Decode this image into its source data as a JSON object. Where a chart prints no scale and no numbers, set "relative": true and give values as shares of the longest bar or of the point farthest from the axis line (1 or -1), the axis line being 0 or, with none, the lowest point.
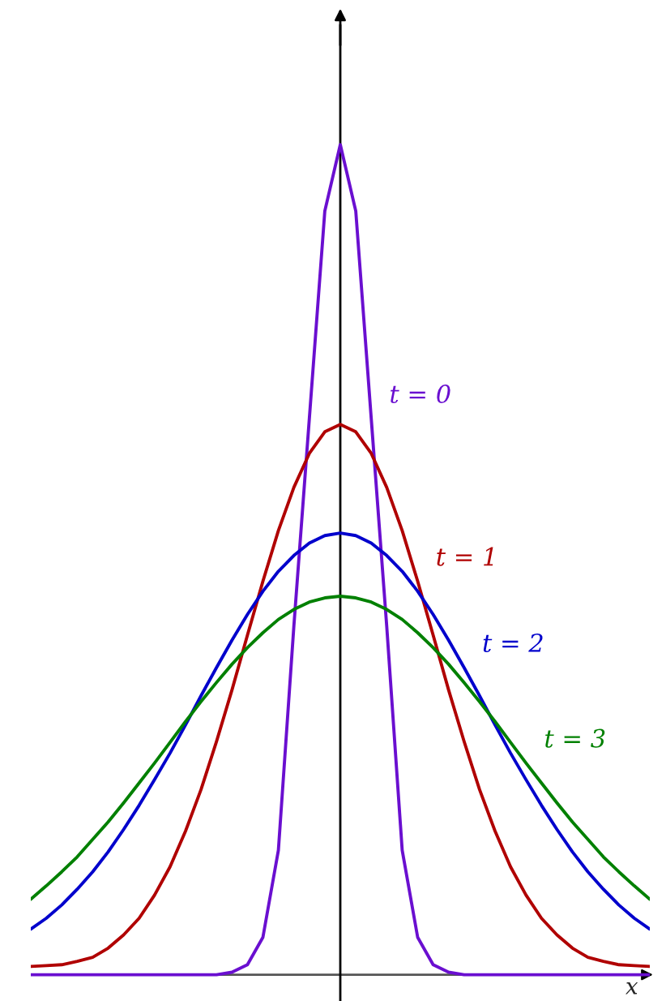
{
  "chart_data": {
    "type": "line",
    "relative": true,
    "xlabel": "x",
    "marker": "none",
    "line_style": "solid",
    "categories": [
      null,
      null,
      null,
      null,
      null,
      null,
      null,
      null,
      null,
      null,
      null,
      null,
      null,
      null,
      null,
      null,
      null,
      null,
      null,
      null,
      null,
      null,
      null,
      null,
      null,
      null,
      null,
      null,
      null,
      null,
      null,
      null,
      null,
      null,
      null,
      null,
      null,
      null,
      null,
      null,
      null
    ],
    "series": [
      {
        "name": "t = 0",
        "color": "#6a0fd0",
        "values": [
          0,
          0,
          0,
          0,
          0,
          0,
          0,
          0,
          0,
          0,
          0,
          0,
          0,
          0.003,
          0.012,
          0.045,
          0.15,
          0.42,
          0.67,
          0.92,
          1,
          0.92,
          0.67,
          0.42,
          0.15,
          0.045,
          0.012,
          0.003,
          0,
          0,
          0,
          0,
          0,
          0,
          0,
          0,
          0,
          0,
          0,
          0,
          0
        ]
      },
      {
        "name": "t = 1",
        "color": "#b00000",
        "values": [
          0.01,
          0.011,
          0.012,
          0.016,
          0.021,
          0.032,
          0.048,
          0.068,
          0.096,
          0.13,
          0.173,
          0.223,
          0.281,
          0.343,
          0.409,
          0.474,
          0.535,
          0.587,
          0.628,
          0.654,
          0.663,
          0.654,
          0.628,
          0.587,
          0.535,
          0.474,
          0.409,
          0.343,
          0.281,
          0.223,
          0.173,
          0.13,
          0.096,
          0.068,
          0.048,
          0.032,
          0.021,
          0.016,
          0.012,
          0.011,
          0.01
        ]
      },
      {
        "name": "t = 2",
        "color": "#0000cc",
        "values": [
          0.055,
          0.068,
          0.084,
          0.103,
          0.124,
          0.148,
          0.175,
          0.204,
          0.235,
          0.267,
          0.301,
          0.336,
          0.37,
          0.403,
          0.434,
          0.462,
          0.486,
          0.505,
          0.52,
          0.529,
          0.532,
          0.529,
          0.52,
          0.505,
          0.486,
          0.462,
          0.434,
          0.403,
          0.37,
          0.336,
          0.301,
          0.267,
          0.235,
          0.204,
          0.175,
          0.148,
          0.124,
          0.103,
          0.084,
          0.068,
          0.055
        ]
      },
      {
        "name": "t = 3",
        "color": "#008000",
        "values": [
          0.091,
          0.107,
          0.124,
          0.142,
          0.163,
          0.184,
          0.207,
          0.231,
          0.255,
          0.28,
          0.305,
          0.329,
          0.352,
          0.374,
          0.394,
          0.412,
          0.428,
          0.44,
          0.449,
          0.454,
          0.456,
          0.454,
          0.449,
          0.44,
          0.428,
          0.412,
          0.394,
          0.374,
          0.352,
          0.329,
          0.305,
          0.28,
          0.255,
          0.231,
          0.207,
          0.184,
          0.163,
          0.142,
          0.124,
          0.107,
          0.091
        ]
      }
    ]
  }
}
